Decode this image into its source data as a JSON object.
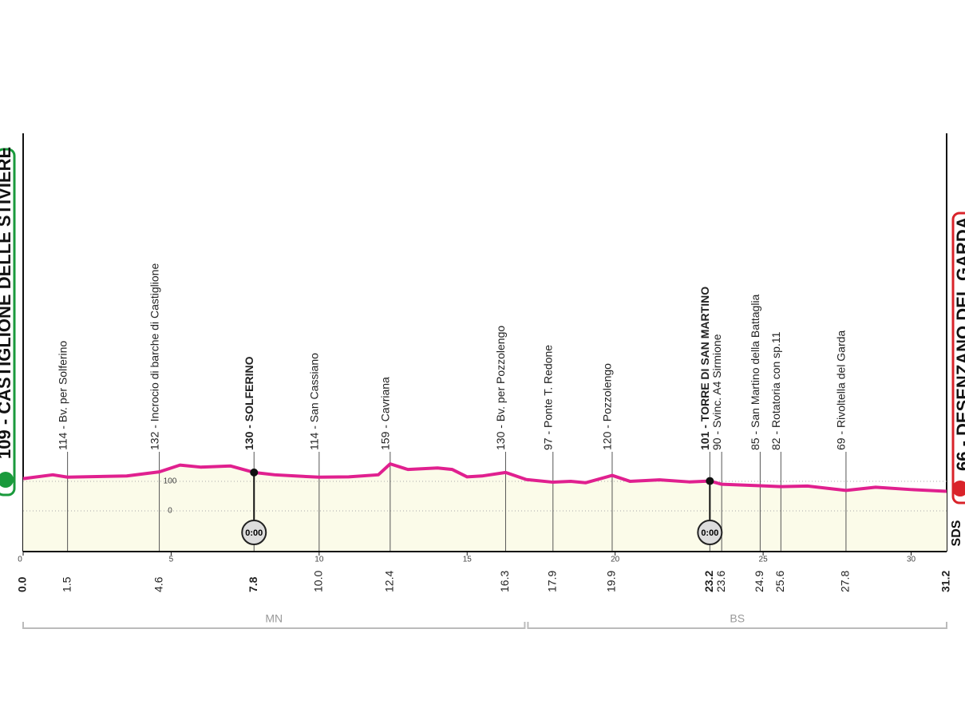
{
  "chart_data": {
    "type": "area",
    "start": "109 - CASTIGLIONE DELLE STIVIERE",
    "finish": "66 - DESENZANO DEL GARDA",
    "x": [
      0,
      1,
      1.5,
      2.5,
      3.5,
      4.6,
      5.3,
      6,
      7,
      7.8,
      8.5,
      9.2,
      10,
      11,
      12,
      12.4,
      13,
      14,
      14.5,
      15,
      15.5,
      16.3,
      17,
      17.9,
      18.5,
      19,
      19.9,
      20.5,
      21.5,
      22.5,
      23.2,
      23.6,
      24.9,
      25.6,
      26.5,
      27.8,
      28.8,
      30,
      31.2
    ],
    "values": [
      109,
      122,
      114,
      116,
      118,
      132,
      155,
      148,
      152,
      130,
      122,
      118,
      114,
      115,
      122,
      159,
      140,
      145,
      140,
      115,
      118,
      130,
      106,
      97,
      100,
      95,
      120,
      100,
      105,
      98,
      101,
      90,
      85,
      82,
      84,
      69,
      80,
      72,
      66
    ],
    "color": "#e0208f",
    "fill": "#fbfbe9",
    "xlim": [
      0,
      31.2
    ],
    "xticks": [
      0,
      5,
      10,
      15,
      20,
      25,
      30
    ],
    "ylim": [
      -138,
      1300
    ],
    "yticks": [
      0,
      100
    ],
    "km_start": "0.0",
    "km_finish": "31.2",
    "waypoints": [
      {
        "label": "114 - Bv. per Solferino",
        "km": "1.5"
      },
      {
        "label": "132 - Incrocio di barche di Castiglione",
        "km": "4.6"
      },
      {
        "label": "130 - SOLFERINO",
        "km": "7.8",
        "timed": true,
        "time": "0:00"
      },
      {
        "label": "114 - San Cassiano",
        "km": "10.0"
      },
      {
        "label": "159 - Cavriana",
        "km": "12.4"
      },
      {
        "label": "130 - Bv. per Pozzolengo",
        "km": "16.3"
      },
      {
        "label": "97 - Ponte T. Redone",
        "km": "17.9"
      },
      {
        "label": "120 - Pozzolengo",
        "km": "19.9"
      },
      {
        "label": "101 - TORRE DI SAN MARTINO",
        "km": "23.2",
        "timed": true,
        "time": "0:00"
      },
      {
        "label": "90 - Svinc. A4 Sirmione",
        "km": "23.6"
      },
      {
        "label": "85 - San Martino della Battaglia",
        "km": "24.9"
      },
      {
        "label": "82 - Rotatoria con sp.11",
        "km": "25.6"
      },
      {
        "label": "69 - Rivoltella del Garda",
        "km": "27.8"
      }
    ],
    "regions": [
      {
        "name": "MN",
        "from": 0,
        "to": 17
      },
      {
        "name": "BS",
        "from": 17,
        "to": 31.2
      }
    ],
    "logo": "SDS"
  }
}
